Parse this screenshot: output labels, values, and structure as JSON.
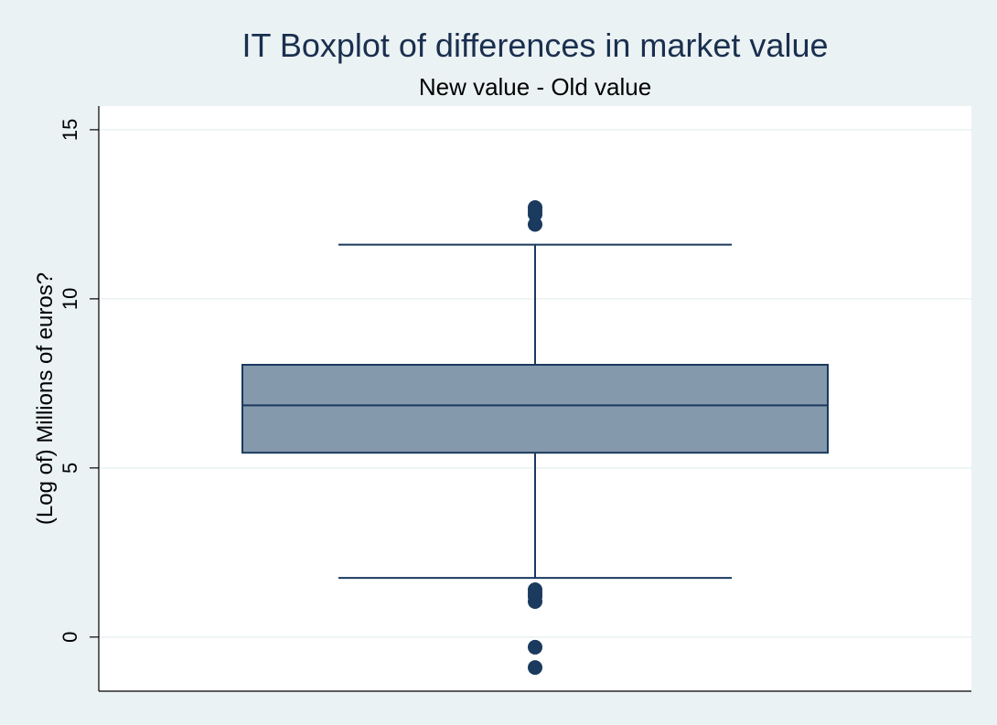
{
  "chart_data": {
    "type": "box",
    "title": "IT Boxplot of differences in market value",
    "subtitle": "New value - Old value",
    "xlabel": "",
    "ylabel": "(Log of) Millions of euros?",
    "ylim": [
      -1.6,
      15.7
    ],
    "yticks": [
      0,
      5,
      10,
      15
    ],
    "ytick_labels": [
      "0",
      "5",
      "10",
      "15"
    ],
    "grid": true,
    "box": {
      "whisker_low": 1.75,
      "q1": 5.45,
      "median": 6.85,
      "q3": 8.05,
      "whisker_high": 11.6
    },
    "outliers": [
      12.7,
      12.6,
      12.5,
      12.2,
      1.4,
      1.3,
      1.2,
      1.05,
      -0.3,
      -0.9
    ],
    "colors": {
      "plot_background": "#ffffff",
      "outer_background": "#eaf2f3",
      "box_fill": "#8599ad",
      "box_stroke": "#1a3a5e",
      "marker": "#1a3a5e",
      "grid": "#eaf2f3",
      "title": "#1a2f4f"
    }
  }
}
